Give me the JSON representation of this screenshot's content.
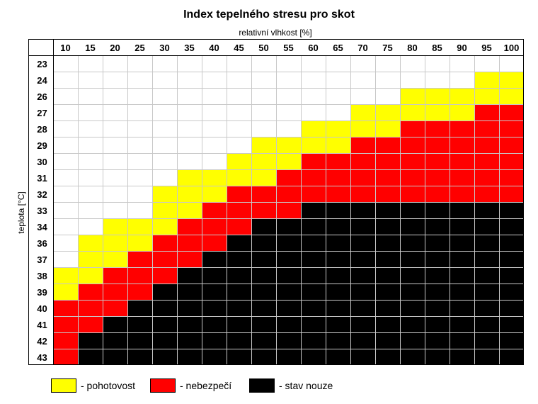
{
  "chart_data": {
    "type": "heatmap",
    "title": "Index tepelného stresu pro skot",
    "xlabel": "relativní vlhkost [%]",
    "ylabel": "teplota [°C]",
    "x": [
      10,
      15,
      20,
      25,
      30,
      35,
      40,
      45,
      50,
      55,
      60,
      65,
      70,
      75,
      80,
      85,
      90,
      95,
      100
    ],
    "y": [
      23,
      24,
      26,
      27,
      28,
      29,
      30,
      31,
      32,
      33,
      34,
      36,
      37,
      38,
      39,
      40,
      41,
      42,
      43
    ],
    "levels": [
      {
        "value": 0,
        "name": "",
        "color": "#ffffff"
      },
      {
        "value": 1,
        "name": "- pohotovost",
        "color": "#ffff00"
      },
      {
        "value": 2,
        "name": "- nebezpečí",
        "color": "#ff0000"
      },
      {
        "value": 3,
        "name": "- stav nouze",
        "color": "#000000"
      }
    ],
    "values": [
      [
        0,
        0,
        0,
        0,
        0,
        0,
        0,
        0,
        0,
        0,
        0,
        0,
        0,
        0,
        0,
        0,
        0,
        0,
        0
      ],
      [
        0,
        0,
        0,
        0,
        0,
        0,
        0,
        0,
        0,
        0,
        0,
        0,
        0,
        0,
        0,
        0,
        0,
        1,
        1
      ],
      [
        0,
        0,
        0,
        0,
        0,
        0,
        0,
        0,
        0,
        0,
        0,
        0,
        0,
        0,
        1,
        1,
        1,
        1,
        1
      ],
      [
        0,
        0,
        0,
        0,
        0,
        0,
        0,
        0,
        0,
        0,
        0,
        0,
        1,
        1,
        1,
        1,
        1,
        2,
        2
      ],
      [
        0,
        0,
        0,
        0,
        0,
        0,
        0,
        0,
        0,
        0,
        1,
        1,
        1,
        1,
        2,
        2,
        2,
        2,
        2
      ],
      [
        0,
        0,
        0,
        0,
        0,
        0,
        0,
        0,
        1,
        1,
        1,
        1,
        2,
        2,
        2,
        2,
        2,
        2,
        2
      ],
      [
        0,
        0,
        0,
        0,
        0,
        0,
        0,
        1,
        1,
        1,
        2,
        2,
        2,
        2,
        2,
        2,
        2,
        2,
        2
      ],
      [
        0,
        0,
        0,
        0,
        0,
        1,
        1,
        1,
        1,
        2,
        2,
        2,
        2,
        2,
        2,
        2,
        2,
        2,
        2
      ],
      [
        0,
        0,
        0,
        0,
        1,
        1,
        1,
        2,
        2,
        2,
        2,
        2,
        2,
        2,
        2,
        2,
        2,
        2,
        2
      ],
      [
        0,
        0,
        0,
        0,
        1,
        1,
        2,
        2,
        2,
        2,
        3,
        3,
        3,
        3,
        3,
        3,
        3,
        3,
        3
      ],
      [
        0,
        0,
        1,
        1,
        1,
        2,
        2,
        2,
        3,
        3,
        3,
        3,
        3,
        3,
        3,
        3,
        3,
        3,
        3
      ],
      [
        0,
        1,
        1,
        1,
        2,
        2,
        2,
        3,
        3,
        3,
        3,
        3,
        3,
        3,
        3,
        3,
        3,
        3,
        3
      ],
      [
        0,
        1,
        1,
        2,
        2,
        2,
        3,
        3,
        3,
        3,
        3,
        3,
        3,
        3,
        3,
        3,
        3,
        3,
        3
      ],
      [
        1,
        1,
        2,
        2,
        2,
        3,
        3,
        3,
        3,
        3,
        3,
        3,
        3,
        3,
        3,
        3,
        3,
        3,
        3
      ],
      [
        1,
        2,
        2,
        2,
        3,
        3,
        3,
        3,
        3,
        3,
        3,
        3,
        3,
        3,
        3,
        3,
        3,
        3,
        3
      ],
      [
        2,
        2,
        2,
        3,
        3,
        3,
        3,
        3,
        3,
        3,
        3,
        3,
        3,
        3,
        3,
        3,
        3,
        3,
        3
      ],
      [
        2,
        2,
        3,
        3,
        3,
        3,
        3,
        3,
        3,
        3,
        3,
        3,
        3,
        3,
        3,
        3,
        3,
        3,
        3
      ],
      [
        2,
        3,
        3,
        3,
        3,
        3,
        3,
        3,
        3,
        3,
        3,
        3,
        3,
        3,
        3,
        3,
        3,
        3,
        3
      ],
      [
        2,
        3,
        3,
        3,
        3,
        3,
        3,
        3,
        3,
        3,
        3,
        3,
        3,
        3,
        3,
        3,
        3,
        3,
        3
      ]
    ],
    "grid": true,
    "legend": "bottom"
  }
}
